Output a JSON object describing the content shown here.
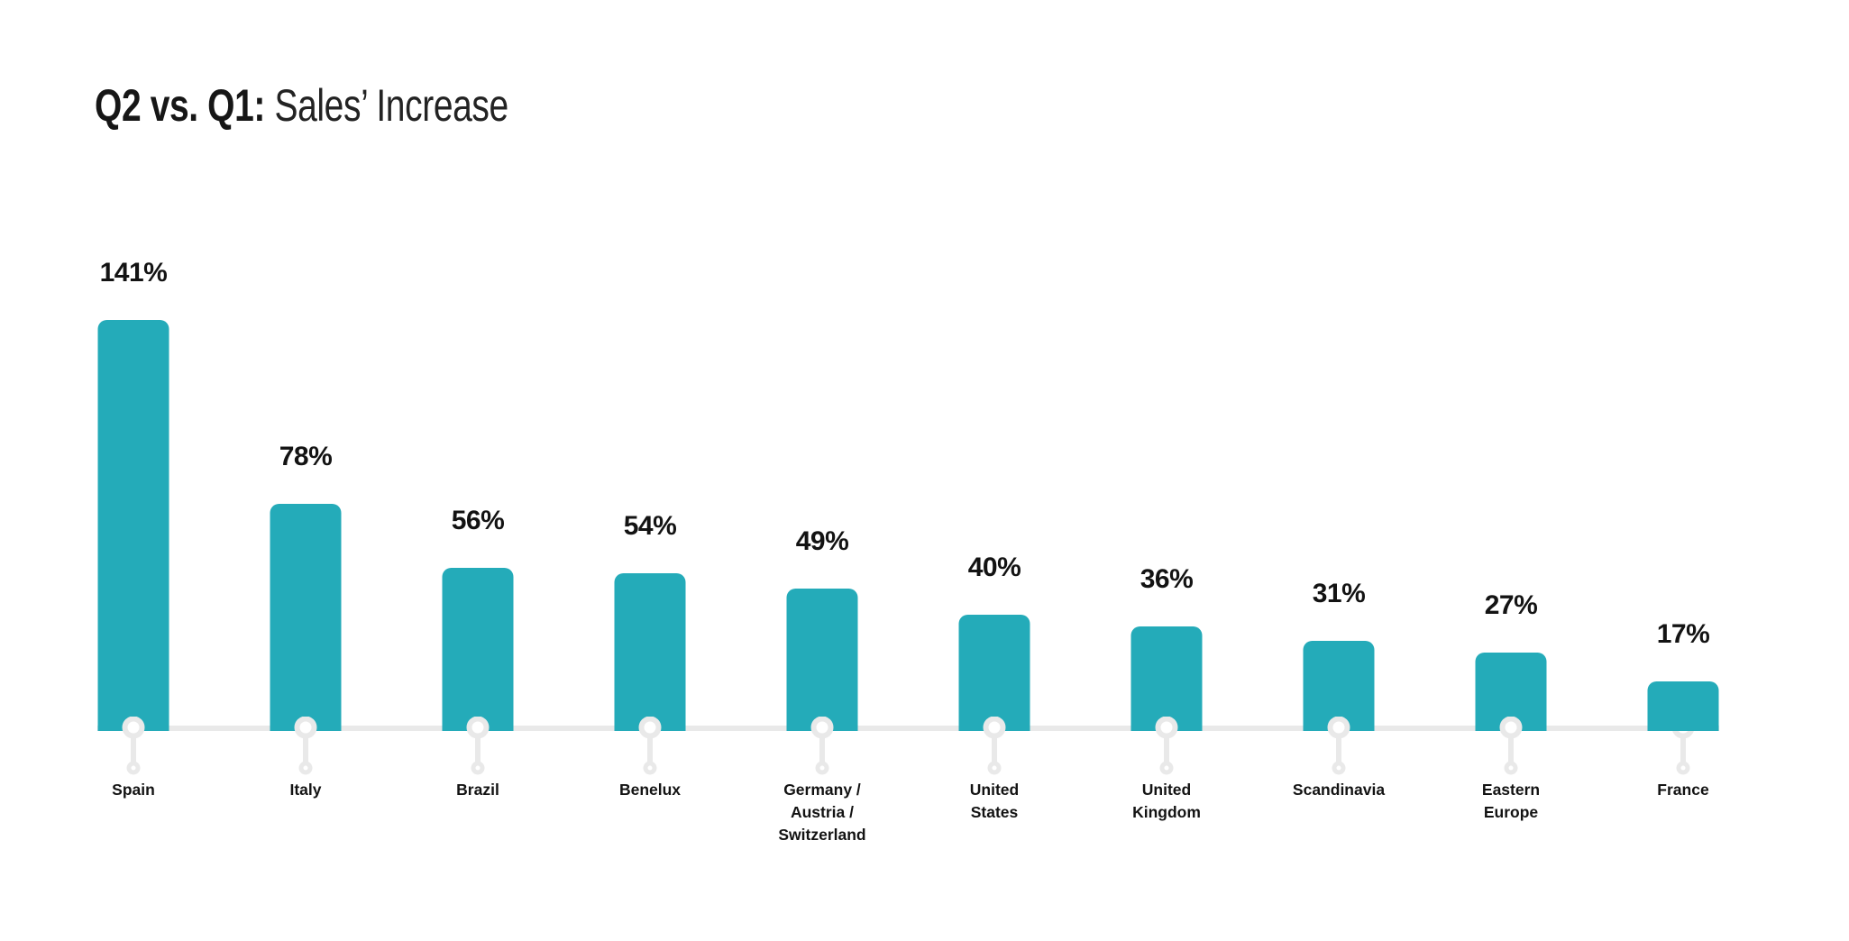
{
  "title": {
    "bold": "Q2 vs. Q1:",
    "regular": "Sales’ Increase"
  },
  "colors": {
    "bar": "#24abb9",
    "axis_gray": "#e9e9e9",
    "text": "#161616"
  },
  "chart_data": {
    "type": "bar",
    "title": "Q2 vs. Q1: Sales’ Increase",
    "categories": [
      "Spain",
      "Italy",
      "Brazil",
      "Benelux",
      "Germany / Austria / Switzerland",
      "United States",
      "United Kingdom",
      "Scandinavia",
      "Eastern Europe",
      "France"
    ],
    "values": [
      141,
      78,
      56,
      54,
      49,
      40,
      36,
      31,
      27,
      17
    ],
    "value_labels": [
      "141%",
      "78%",
      "56%",
      "54%",
      "49%",
      "40%",
      "36%",
      "31%",
      "27%",
      "17%"
    ],
    "xlabel": "",
    "ylabel": "",
    "ylim": [
      0,
      150
    ],
    "grid": false,
    "legend": false,
    "bar_color": "#24abb9",
    "value_labels_position": "above-bars"
  },
  "bars": [
    {
      "label_lines": [
        "Spain"
      ],
      "pin_behind_bar": false
    },
    {
      "label_lines": [
        "Italy"
      ],
      "pin_behind_bar": false
    },
    {
      "label_lines": [
        "Brazil"
      ],
      "pin_behind_bar": false
    },
    {
      "label_lines": [
        "Benelux"
      ],
      "pin_behind_bar": false
    },
    {
      "label_lines": [
        "Germany /",
        "Austria /",
        "Switzerland"
      ],
      "pin_behind_bar": false
    },
    {
      "label_lines": [
        "United",
        "States"
      ],
      "pin_behind_bar": false
    },
    {
      "label_lines": [
        "United",
        "Kingdom"
      ],
      "pin_behind_bar": false
    },
    {
      "label_lines": [
        "Scandinavia"
      ],
      "pin_behind_bar": false
    },
    {
      "label_lines": [
        "Eastern",
        "Europe"
      ],
      "pin_behind_bar": false
    },
    {
      "label_lines": [
        "France"
      ],
      "pin_behind_bar": true
    }
  ]
}
